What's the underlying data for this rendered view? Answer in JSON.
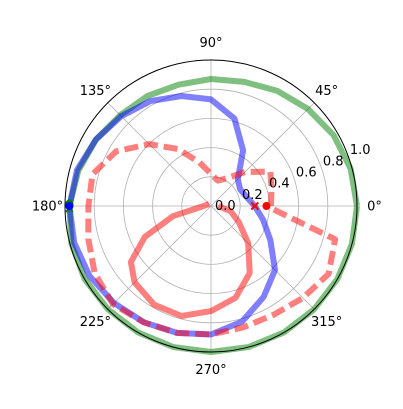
{
  "chart_data": {
    "type": "line",
    "projection": "polar",
    "title": "",
    "rlim": [
      0,
      1.0
    ],
    "grid": true,
    "legend": "none",
    "angular_ticks": [
      "0°",
      "45°",
      "90°",
      "135°",
      "180°",
      "225°",
      "270°",
      "315°"
    ],
    "angular_tick_degrees": [
      0,
      45,
      90,
      135,
      180,
      225,
      270,
      315
    ],
    "radial_ticks": [
      "0.0",
      "0.2",
      "0.4",
      "0.6",
      "0.8",
      "1.0"
    ],
    "radial_tick_values": [
      0.0,
      0.2,
      0.4,
      0.6,
      0.8,
      1.0
    ],
    "radial_label_angle_deg": 22.5,
    "series": [
      {
        "curve": "green-circle",
        "color": "#008000",
        "linestyle": "solid",
        "opacity": 0.5,
        "points": [
          {
            "theta_deg": 0,
            "r": 1.0
          },
          {
            "theta_deg": 15,
            "r": 0.99
          },
          {
            "theta_deg": 30,
            "r": 0.97
          },
          {
            "theta_deg": 45,
            "r": 0.94
          },
          {
            "theta_deg": 60,
            "r": 0.91
          },
          {
            "theta_deg": 75,
            "r": 0.88
          },
          {
            "theta_deg": 90,
            "r": 0.87
          },
          {
            "theta_deg": 105,
            "r": 0.86
          },
          {
            "theta_deg": 120,
            "r": 0.87
          },
          {
            "theta_deg": 135,
            "r": 0.88
          },
          {
            "theta_deg": 150,
            "r": 0.91
          },
          {
            "theta_deg": 165,
            "r": 0.94
          },
          {
            "theta_deg": 180,
            "r": 0.97
          },
          {
            "theta_deg": 195,
            "r": 0.99
          },
          {
            "theta_deg": 210,
            "r": 1.0
          },
          {
            "theta_deg": 225,
            "r": 1.0
          },
          {
            "theta_deg": 240,
            "r": 1.0
          },
          {
            "theta_deg": 255,
            "r": 1.0
          },
          {
            "theta_deg": 270,
            "r": 1.0
          },
          {
            "theta_deg": 285,
            "r": 1.0
          },
          {
            "theta_deg": 300,
            "r": 1.0
          },
          {
            "theta_deg": 315,
            "r": 1.0
          },
          {
            "theta_deg": 330,
            "r": 1.0
          },
          {
            "theta_deg": 345,
            "r": 1.0
          },
          {
            "theta_deg": 360,
            "r": 1.0
          }
        ],
        "end_marker": {
          "theta_deg": 180,
          "r": 0.97,
          "shape": "o"
        }
      },
      {
        "curve": "blue-loop",
        "color": "#0000ff",
        "linestyle": "solid",
        "opacity": 0.5,
        "points": [
          {
            "theta_deg": 180,
            "r": 0.97
          },
          {
            "theta_deg": 195,
            "r": 0.97
          },
          {
            "theta_deg": 210,
            "r": 0.96
          },
          {
            "theta_deg": 225,
            "r": 0.94
          },
          {
            "theta_deg": 240,
            "r": 0.92
          },
          {
            "theta_deg": 255,
            "r": 0.9
          },
          {
            "theta_deg": 270,
            "r": 0.88
          },
          {
            "theta_deg": 285,
            "r": 0.82
          },
          {
            "theta_deg": 300,
            "r": 0.72
          },
          {
            "theta_deg": 315,
            "r": 0.62
          },
          {
            "theta_deg": 330,
            "r": 0.47
          },
          {
            "theta_deg": 345,
            "r": 0.37
          },
          {
            "theta_deg": 0,
            "r": 0.3
          },
          {
            "theta_deg": 15,
            "r": 0.25
          },
          {
            "theta_deg": 30,
            "r": 0.23
          },
          {
            "theta_deg": 45,
            "r": 0.26
          },
          {
            "theta_deg": 60,
            "r": 0.44
          },
          {
            "theta_deg": 75,
            "r": 0.62
          },
          {
            "theta_deg": 90,
            "r": 0.73
          },
          {
            "theta_deg": 105,
            "r": 0.78
          },
          {
            "theta_deg": 120,
            "r": 0.83
          },
          {
            "theta_deg": 135,
            "r": 0.87
          },
          {
            "theta_deg": 150,
            "r": 0.91
          },
          {
            "theta_deg": 165,
            "r": 0.95
          },
          {
            "theta_deg": 180,
            "r": 0.97
          }
        ],
        "end_marker": {
          "theta_deg": 180,
          "r": 0.97,
          "shape": "x"
        }
      },
      {
        "curve": "red-dashed",
        "color": "#ff0000",
        "linestyle": "dashed",
        "opacity": 0.5,
        "points": [
          {
            "theta_deg": 0,
            "r": 0.41
          },
          {
            "theta_deg": 15,
            "r": 0.43
          },
          {
            "theta_deg": 30,
            "r": 0.47
          },
          {
            "theta_deg": 45,
            "r": 0.33
          },
          {
            "theta_deg": 60,
            "r": 0.22
          },
          {
            "theta_deg": 75,
            "r": 0.18
          },
          {
            "theta_deg": 90,
            "r": 0.22
          },
          {
            "theta_deg": 105,
            "r": 0.31
          },
          {
            "theta_deg": 120,
            "r": 0.45
          },
          {
            "theta_deg": 135,
            "r": 0.6
          },
          {
            "theta_deg": 150,
            "r": 0.75
          },
          {
            "theta_deg": 165,
            "r": 0.84
          },
          {
            "theta_deg": 180,
            "r": 0.84
          },
          {
            "theta_deg": 195,
            "r": 0.87
          },
          {
            "theta_deg": 210,
            "r": 0.92
          },
          {
            "theta_deg": 225,
            "r": 0.95
          },
          {
            "theta_deg": 240,
            "r": 0.92
          },
          {
            "theta_deg": 255,
            "r": 0.9
          },
          {
            "theta_deg": 270,
            "r": 0.88
          },
          {
            "theta_deg": 285,
            "r": 0.86
          },
          {
            "theta_deg": 300,
            "r": 0.86
          },
          {
            "theta_deg": 315,
            "r": 0.89
          },
          {
            "theta_deg": 330,
            "r": 0.93
          },
          {
            "theta_deg": 345,
            "r": 0.88
          },
          {
            "theta_deg": 0,
            "r": 0.38
          }
        ],
        "end_marker": {
          "theta_deg": 0,
          "r": 0.38,
          "shape": "o"
        }
      },
      {
        "curve": "red-solid",
        "color": "#ff0000",
        "linestyle": "solid",
        "opacity": 0.5,
        "points": [
          {
            "theta_deg": 130,
            "r": 0.02
          },
          {
            "theta_deg": 180,
            "r": 0.05
          },
          {
            "theta_deg": 195,
            "r": 0.27
          },
          {
            "theta_deg": 205,
            "r": 0.5
          },
          {
            "theta_deg": 215,
            "r": 0.67
          },
          {
            "theta_deg": 225,
            "r": 0.74
          },
          {
            "theta_deg": 240,
            "r": 0.78
          },
          {
            "theta_deg": 255,
            "r": 0.78
          },
          {
            "theta_deg": 270,
            "r": 0.72
          },
          {
            "theta_deg": 285,
            "r": 0.65
          },
          {
            "theta_deg": 300,
            "r": 0.53
          },
          {
            "theta_deg": 315,
            "r": 0.36
          },
          {
            "theta_deg": 330,
            "r": 0.22
          },
          {
            "theta_deg": 345,
            "r": 0.14
          },
          {
            "theta_deg": 0,
            "r": 0.05
          }
        ],
        "end_marker": {
          "theta_deg": 0,
          "r": 0.3,
          "shape": "x"
        }
      }
    ],
    "extra_markers": [
      {
        "color": "#008000",
        "theta_deg": 180,
        "r": 0.97,
        "shape": "o"
      },
      {
        "color": "#008000",
        "theta_deg": 179,
        "r": 0.97,
        "shape": "o"
      },
      {
        "color": "#008000",
        "theta_deg": 181,
        "r": 0.97,
        "shape": "x"
      },
      {
        "color": "#ff0000",
        "theta_deg": 0,
        "r": 0.38,
        "shape": "o"
      },
      {
        "color": "#ff0000",
        "theta_deg": 0,
        "r": 0.3,
        "shape": "x"
      }
    ]
  }
}
